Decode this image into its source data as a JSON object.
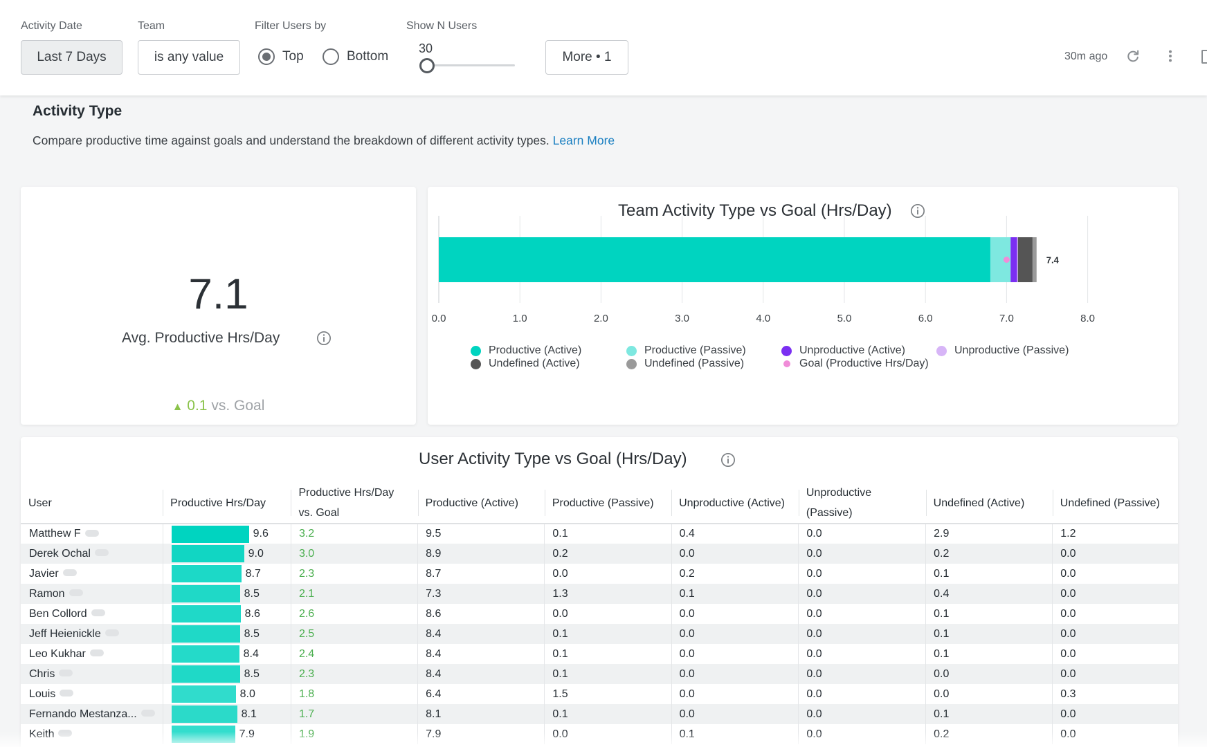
{
  "filters": {
    "activity_date_label": "Activity Date",
    "activity_date_value": "Last 7 Days",
    "team_label": "Team",
    "team_value": "is any value",
    "filter_users_label": "Filter Users by",
    "radio_top": "Top",
    "radio_bottom": "Bottom",
    "radio_selected": "Top",
    "show_n_label": "Show N Users",
    "show_n_value": "30",
    "more_label": "More • 1",
    "updated": "30m ago",
    "icons": [
      "refresh-icon",
      "more-vertical-icon"
    ]
  },
  "section": {
    "title": "Activity Type",
    "description": "Compare productive time against goals and understand the breakdown of different activity types.",
    "learn_more": "Learn More"
  },
  "kpi": {
    "value": "7.1",
    "label": "Avg. Productive Hrs/Day",
    "delta_arrow": "▲",
    "delta_value": "0.1",
    "delta_suffix": "vs. Goal"
  },
  "colors": {
    "productive_active": "#00d4c0",
    "productive_passive": "#7ee8e0",
    "unproductive_active": "#7b2ff2",
    "unproductive_passive": "#d7b5f7",
    "undefined_active": "#555555",
    "undefined_passive": "#9a9a9a",
    "goal": "#f08cd8",
    "positive": "#4caf50"
  },
  "chart_data": {
    "type": "bar",
    "orientation": "horizontal",
    "stacked": true,
    "title": "Team Activity Type vs Goal (Hrs/Day)",
    "xlim": [
      0,
      8
    ],
    "ticks": [
      "0.0",
      "1.0",
      "2.0",
      "3.0",
      "4.0",
      "5.0",
      "6.0",
      "7.0",
      "8.0"
    ],
    "grid": true,
    "legend_position": "bottom",
    "total_label": "7.4",
    "goal": 7.0,
    "series": [
      {
        "name": "Productive (Active)",
        "color": "#00d4c0",
        "values": [
          6.8
        ]
      },
      {
        "name": "Productive (Passive)",
        "color": "#7ee8e0",
        "values": [
          0.25
        ]
      },
      {
        "name": "Unproductive (Active)",
        "color": "#7b2ff2",
        "values": [
          0.08
        ]
      },
      {
        "name": "Unproductive (Passive)",
        "color": "#d7b5f7",
        "values": [
          0.01
        ]
      },
      {
        "name": "Undefined (Active)",
        "color": "#555555",
        "values": [
          0.18
        ]
      },
      {
        "name": "Undefined (Passive)",
        "color": "#9a9a9a",
        "values": [
          0.05
        ]
      }
    ],
    "legend": [
      {
        "name": "Productive (Active)",
        "color": "#00d4c0"
      },
      {
        "name": "Undefined (Active)",
        "color": "#555555"
      },
      {
        "name": "Productive (Passive)",
        "color": "#7ee8e0"
      },
      {
        "name": "Undefined (Passive)",
        "color": "#9a9a9a"
      },
      {
        "name": "Unproductive (Active)",
        "color": "#7b2ff2"
      },
      {
        "name": "Goal (Productive Hrs/Day)",
        "color": "#f08cd8"
      },
      {
        "name": "Unproductive (Passive)",
        "color": "#d7b5f7"
      }
    ]
  },
  "table": {
    "title": "User Activity Type vs Goal (Hrs/Day)",
    "columns": [
      "User",
      "Productive Hrs/Day",
      "Productive Hrs/Day vs. Goal",
      "Productive (Active)",
      "Productive (Passive)",
      "Unproductive (Active)",
      "Unproductive (Passive)",
      "Undefined (Active)",
      "Undefined (Passive)"
    ],
    "bar_max": 9.6,
    "rows": [
      {
        "user": "Matthew F",
        "productive": "9.6",
        "vs_goal": "3.2",
        "p_active": "9.5",
        "p_passive": "0.1",
        "u_active": "0.4",
        "u_passive": "0.0",
        "d_active": "2.9",
        "d_passive": "1.2"
      },
      {
        "user": "Derek Ochal",
        "productive": "9.0",
        "vs_goal": "3.0",
        "p_active": "8.9",
        "p_passive": "0.2",
        "u_active": "0.0",
        "u_passive": "0.0",
        "d_active": "0.2",
        "d_passive": "0.0"
      },
      {
        "user": "Javier",
        "productive": "8.7",
        "vs_goal": "2.3",
        "p_active": "8.7",
        "p_passive": "0.0",
        "u_active": "0.2",
        "u_passive": "0.0",
        "d_active": "0.1",
        "d_passive": "0.0"
      },
      {
        "user": "Ramon",
        "productive": "8.5",
        "vs_goal": "2.1",
        "p_active": "7.3",
        "p_passive": "1.3",
        "u_active": "0.1",
        "u_passive": "0.0",
        "d_active": "0.4",
        "d_passive": "0.0"
      },
      {
        "user": "Ben Collord",
        "productive": "8.6",
        "vs_goal": "2.6",
        "p_active": "8.6",
        "p_passive": "0.0",
        "u_active": "0.0",
        "u_passive": "0.0",
        "d_active": "0.1",
        "d_passive": "0.0"
      },
      {
        "user": "Jeff Heienickle",
        "productive": "8.5",
        "vs_goal": "2.5",
        "p_active": "8.4",
        "p_passive": "0.1",
        "u_active": "0.0",
        "u_passive": "0.0",
        "d_active": "0.1",
        "d_passive": "0.0"
      },
      {
        "user": "Leo Kukhar",
        "productive": "8.4",
        "vs_goal": "2.4",
        "p_active": "8.4",
        "p_passive": "0.1",
        "u_active": "0.0",
        "u_passive": "0.0",
        "d_active": "0.1",
        "d_passive": "0.0"
      },
      {
        "user": "Chris",
        "productive": "8.5",
        "vs_goal": "2.3",
        "p_active": "8.4",
        "p_passive": "0.1",
        "u_active": "0.0",
        "u_passive": "0.0",
        "d_active": "0.0",
        "d_passive": "0.0"
      },
      {
        "user": "Louis",
        "productive": "8.0",
        "vs_goal": "1.8",
        "p_active": "6.4",
        "p_passive": "1.5",
        "u_active": "0.0",
        "u_passive": "0.0",
        "d_active": "0.0",
        "d_passive": "0.3"
      },
      {
        "user": "Fernando Mestanza...",
        "productive": "8.1",
        "vs_goal": "1.7",
        "p_active": "8.1",
        "p_passive": "0.1",
        "u_active": "0.0",
        "u_passive": "0.0",
        "d_active": "0.1",
        "d_passive": "0.0"
      },
      {
        "user": "Keith",
        "productive": "7.9",
        "vs_goal": "1.9",
        "p_active": "7.9",
        "p_passive": "0.0",
        "u_active": "0.1",
        "u_passive": "0.0",
        "d_active": "0.2",
        "d_passive": "0.0"
      }
    ]
  }
}
